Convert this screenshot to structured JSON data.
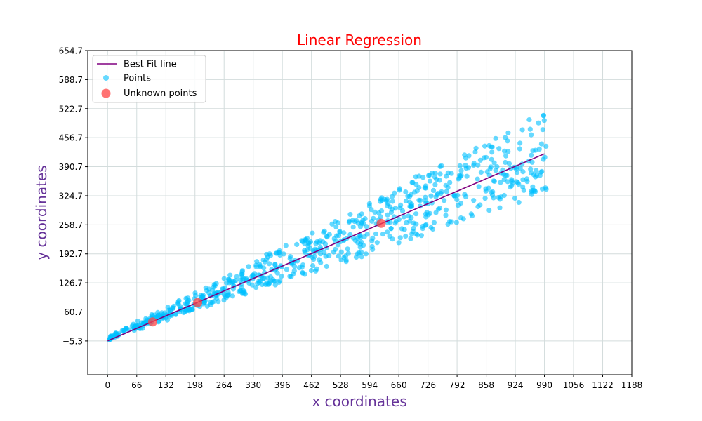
{
  "chart_data": {
    "type": "scatter",
    "title": "Linear Regression",
    "xlabel": "x coordinates",
    "ylabel": "y coordinates",
    "xlim": [
      -45,
      1188
    ],
    "ylim": [
      -82,
      654.7
    ],
    "xticks": [
      0,
      66,
      132,
      198,
      264,
      330,
      396,
      462,
      528,
      594,
      660,
      726,
      792,
      858,
      924,
      990,
      1056,
      1122,
      1188
    ],
    "yticks": [
      -5.3,
      60.7,
      126.7,
      192.7,
      258.7,
      324.7,
      390.7,
      456.7,
      522.7,
      588.7,
      654.7
    ],
    "ytick_labels": [
      "−5.3",
      "60.7",
      "126.7",
      "192.7",
      "258.7",
      "324.7",
      "390.7",
      "456.7",
      "522.7",
      "588.7",
      "654.7"
    ],
    "grid": true,
    "legend_position": "top-left",
    "legend": [
      "Best Fit line",
      "Points",
      "Unknown points"
    ],
    "colors": {
      "title": "#ff0000",
      "axis_label": "#663399",
      "line": "#800080",
      "points": "#00bfff",
      "unknown": "#ff4444",
      "grid": "#d3dcdc"
    },
    "best_fit_line": {
      "x": [
        0,
        990
      ],
      "y": [
        -5,
        420
      ]
    },
    "points_model": {
      "count": 750,
      "x_range": [
        0,
        995
      ],
      "upper_slope": 0.52,
      "lower_slope": 0.33,
      "jitter": 10
    },
    "unknown_points": {
      "x": [
        102,
        204,
        620
      ],
      "y": [
        38,
        82,
        262
      ]
    }
  }
}
